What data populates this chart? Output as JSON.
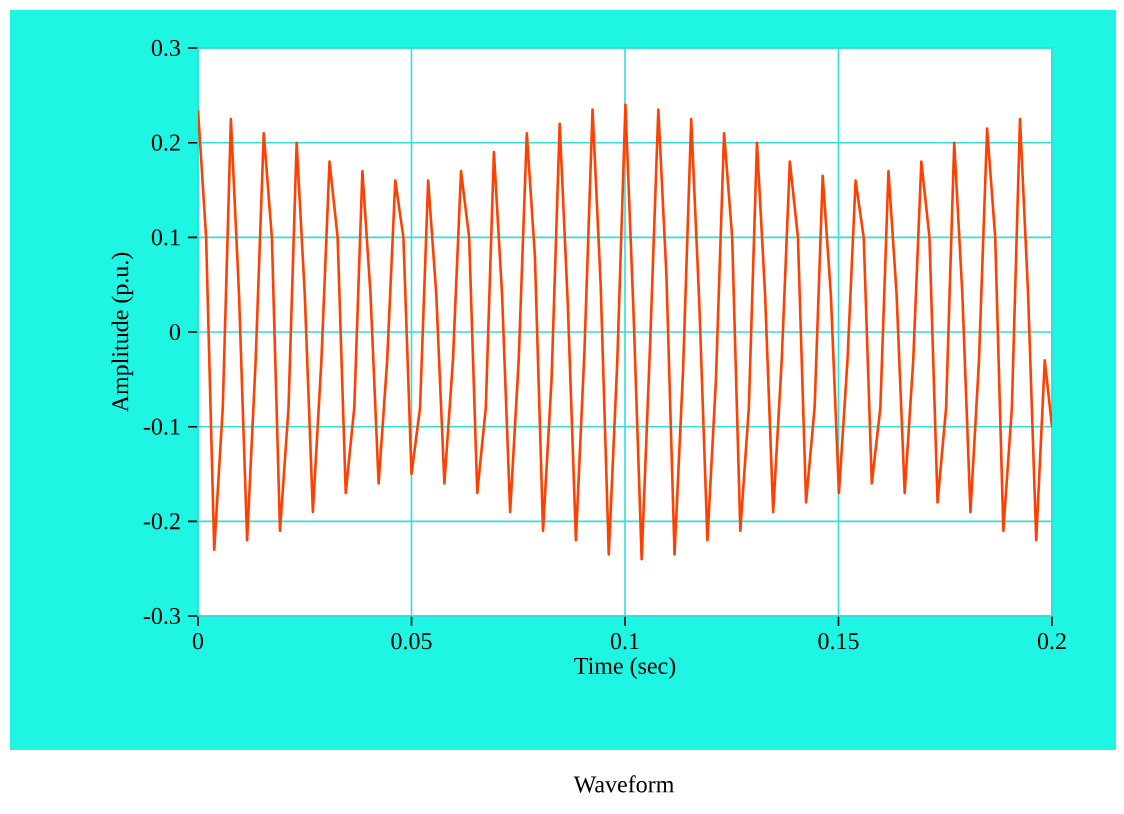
{
  "chart_data": {
    "type": "line",
    "title": "Waveform",
    "xlabel": "Time (sec)",
    "ylabel": "Amplitude (p.u.)",
    "xlim": [
      0,
      0.2
    ],
    "ylim": [
      -0.3,
      0.3
    ],
    "xticks": [
      0,
      0.05,
      0.1,
      0.15,
      0.2
    ],
    "yticks": [
      -0.3,
      -0.2,
      -0.1,
      0,
      0.1,
      0.2,
      0.3
    ],
    "grid": true,
    "marker": "none",
    "line_style": "solid",
    "series": [
      {
        "color": "#ff4000",
        "x": [
          0,
          0.0019,
          0.0038,
          0.0058,
          0.0077,
          0.0096,
          0.0115,
          0.0135,
          0.0154,
          0.0173,
          0.0192,
          0.0212,
          0.0231,
          0.025,
          0.0269,
          0.0289,
          0.0308,
          0.0327,
          0.0346,
          0.0366,
          0.0385,
          0.0404,
          0.0423,
          0.0443,
          0.0462,
          0.0481,
          0.05,
          0.052,
          0.0539,
          0.0558,
          0.0577,
          0.0597,
          0.0616,
          0.0635,
          0.0654,
          0.0674,
          0.0693,
          0.0712,
          0.0731,
          0.0751,
          0.077,
          0.0789,
          0.0808,
          0.0828,
          0.0847,
          0.0866,
          0.0885,
          0.0905,
          0.0924,
          0.0943,
          0.0962,
          0.0982,
          0.1001,
          0.102,
          0.1039,
          0.1059,
          0.1078,
          0.1097,
          0.1116,
          0.1136,
          0.1155,
          0.1174,
          0.1193,
          0.1213,
          0.1232,
          0.1251,
          0.127,
          0.129,
          0.1309,
          0.1328,
          0.1347,
          0.1367,
          0.1386,
          0.1405,
          0.1424,
          0.1444,
          0.1463,
          0.1482,
          0.1501,
          0.1521,
          0.154,
          0.1559,
          0.1578,
          0.1598,
          0.1617,
          0.1636,
          0.1655,
          0.1675,
          0.1694,
          0.1713,
          0.1732,
          0.1752,
          0.1771,
          0.179,
          0.1809,
          0.1829,
          0.1848,
          0.1867,
          0.1886,
          0.1906,
          0.1925,
          0.1944,
          0.1963,
          0.1983,
          0.2
        ],
        "values": [
          0.235,
          0.1,
          -0.23,
          -0.08,
          0.225,
          0.04,
          -0.22,
          -0.03,
          0.21,
          0.1,
          -0.21,
          -0.08,
          0.2,
          0.04,
          -0.19,
          -0.03,
          0.18,
          0.1,
          -0.17,
          -0.08,
          0.17,
          0.04,
          -0.16,
          -0.03,
          0.16,
          0.1,
          -0.15,
          -0.08,
          0.16,
          0.04,
          -0.16,
          -0.03,
          0.17,
          0.1,
          -0.17,
          -0.08,
          0.19,
          0.04,
          -0.19,
          -0.03,
          0.21,
          0.08,
          -0.21,
          -0.05,
          0.22,
          0.03,
          -0.22,
          -0.02,
          0.235,
          0.05,
          -0.235,
          -0.03,
          0.24,
          0.02,
          -0.24,
          -0.01,
          0.235,
          0.06,
          -0.235,
          -0.04,
          0.225,
          0.03,
          -0.22,
          -0.05,
          0.21,
          0.1,
          -0.21,
          -0.08,
          0.2,
          0.04,
          -0.19,
          -0.03,
          0.18,
          0.1,
          -0.18,
          -0.08,
          0.165,
          0.04,
          -0.17,
          -0.03,
          0.16,
          0.1,
          -0.16,
          -0.08,
          0.17,
          0.04,
          -0.17,
          -0.03,
          0.18,
          0.1,
          -0.18,
          -0.08,
          0.2,
          0.04,
          -0.19,
          -0.03,
          0.215,
          0.1,
          -0.21,
          -0.08,
          0.225,
          0.04,
          -0.22,
          -0.03,
          -0.1
        ]
      }
    ]
  }
}
